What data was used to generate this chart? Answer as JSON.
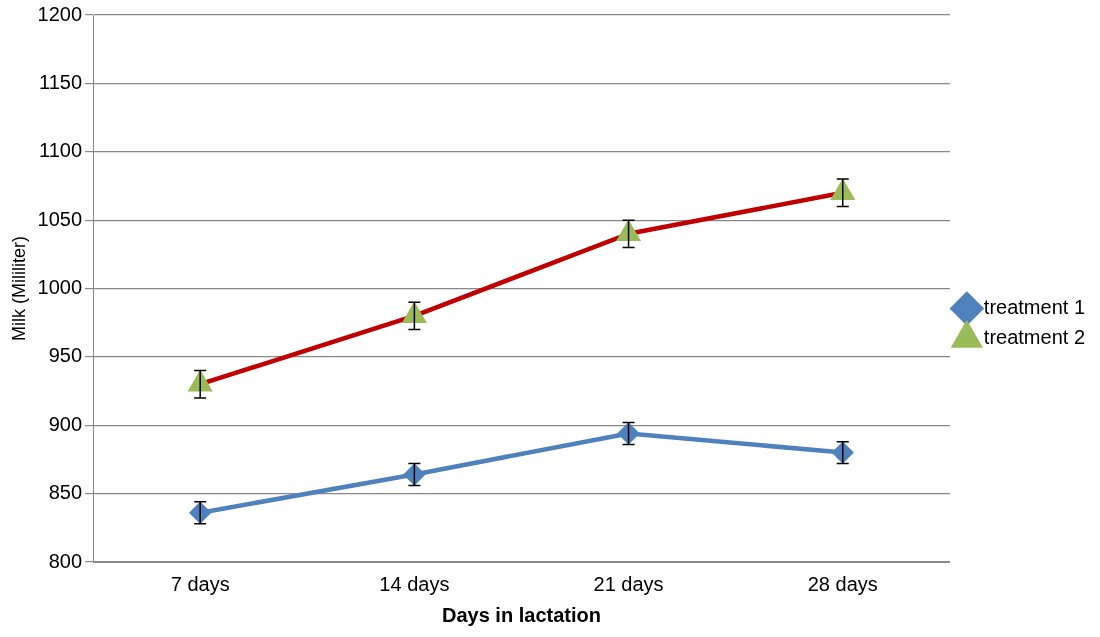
{
  "chart_data": {
    "type": "line",
    "xlabel": "Days in lactation",
    "ylabel": "Milk (Mililiter)",
    "categories": [
      "7 days",
      "14 days",
      "21 days",
      "28 days"
    ],
    "series": [
      {
        "name": "treatment 1",
        "color": "#4f81bd",
        "marker": "diamond",
        "values": [
          836,
          864,
          894,
          880
        ],
        "errors": [
          8,
          8,
          8,
          8
        ]
      },
      {
        "name": "treatment 2",
        "color": "#c00000",
        "colors": [
          "#9bbb59",
          "#9bbb59",
          "#9bbb59",
          "#9bbb59"
        ],
        "marker": "triangle",
        "values": [
          930,
          980,
          1040,
          1070
        ],
        "errors": [
          10,
          10,
          10,
          10
        ]
      }
    ],
    "ylim": [
      800,
      1200
    ],
    "yticks": [
      800,
      850,
      900,
      950,
      1000,
      1050,
      1100,
      1150,
      1200
    ],
    "grid": "y",
    "legend": "right"
  }
}
